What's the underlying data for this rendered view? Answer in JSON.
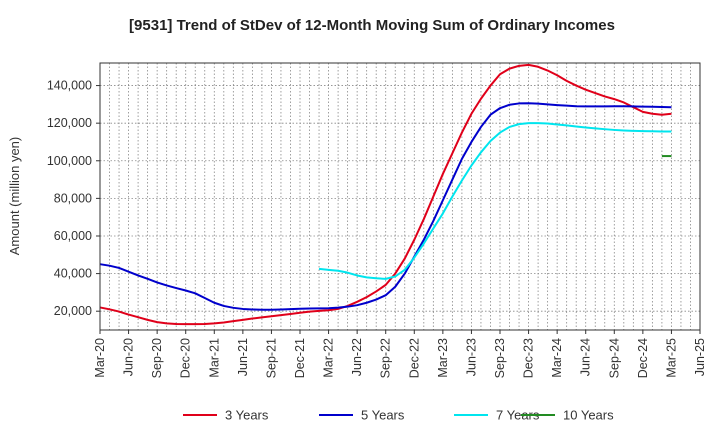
{
  "chart_data": {
    "type": "line",
    "title": "[9531]  Trend of StDev of 12-Month Moving Sum of Ordinary Incomes",
    "xlabel": "",
    "ylabel": "Amount (million yen)",
    "ylim": [
      10000,
      152000
    ],
    "yticks": [
      20000,
      40000,
      60000,
      80000,
      100000,
      120000,
      140000
    ],
    "ytick_labels": [
      "20,000",
      "40,000",
      "60,000",
      "80,000",
      "100,000",
      "120,000",
      "140,000"
    ],
    "xlim": [
      "2020-03",
      "2025-06"
    ],
    "x_tick_labels": [
      "Mar-20",
      "Jun-20",
      "Sep-20",
      "Dec-20",
      "Mar-21",
      "Jun-21",
      "Sep-21",
      "Dec-21",
      "Mar-22",
      "Jun-22",
      "Sep-22",
      "Dec-22",
      "Mar-23",
      "Jun-23",
      "Sep-23",
      "Dec-23",
      "Mar-24",
      "Jun-24",
      "Sep-24",
      "Dec-24",
      "Mar-25",
      "Jun-25"
    ],
    "grid": true,
    "legend_position": "bottom",
    "series": [
      {
        "name": "3 Years",
        "color": "#e0001a",
        "x": [
          "2020-03",
          "2020-04",
          "2020-05",
          "2020-06",
          "2020-07",
          "2020-08",
          "2020-09",
          "2020-10",
          "2020-11",
          "2020-12",
          "2021-01",
          "2021-02",
          "2021-03",
          "2021-04",
          "2021-05",
          "2021-06",
          "2021-07",
          "2021-08",
          "2021-09",
          "2021-10",
          "2021-11",
          "2021-12",
          "2022-01",
          "2022-02",
          "2022-03",
          "2022-04",
          "2022-05",
          "2022-06",
          "2022-07",
          "2022-08",
          "2022-09",
          "2022-10",
          "2022-11",
          "2022-12",
          "2023-01",
          "2023-02",
          "2023-03",
          "2023-04",
          "2023-05",
          "2023-06",
          "2023-07",
          "2023-08",
          "2023-09",
          "2023-10",
          "2023-11",
          "2023-12",
          "2024-01",
          "2024-02",
          "2024-03",
          "2024-04",
          "2024-05",
          "2024-06",
          "2024-07",
          "2024-08",
          "2024-09",
          "2024-10",
          "2024-11",
          "2024-12",
          "2025-01",
          "2025-02",
          "2025-03"
        ],
        "values": [
          22000,
          21000,
          19800,
          18200,
          16800,
          15400,
          14200,
          13500,
          13200,
          13100,
          13100,
          13200,
          13500,
          14000,
          14700,
          15400,
          16100,
          16700,
          17300,
          17900,
          18500,
          19200,
          19800,
          20200,
          20500,
          21200,
          22800,
          25000,
          27500,
          30500,
          34000,
          40000,
          48000,
          58000,
          69000,
          81000,
          93000,
          104000,
          115000,
          125000,
          133000,
          140000,
          146000,
          149000,
          150500,
          151000,
          150000,
          148000,
          145500,
          142500,
          140000,
          137800,
          136000,
          134200,
          132800,
          131000,
          128500,
          126000,
          125000,
          124500,
          125000
        ]
      },
      {
        "name": "5 Years",
        "color": "#0000cc",
        "x": [
          "2020-03",
          "2020-04",
          "2020-05",
          "2020-06",
          "2020-07",
          "2020-08",
          "2020-09",
          "2020-10",
          "2020-11",
          "2020-12",
          "2021-01",
          "2021-02",
          "2021-03",
          "2021-04",
          "2021-05",
          "2021-06",
          "2021-07",
          "2021-08",
          "2021-09",
          "2021-10",
          "2021-11",
          "2021-12",
          "2022-01",
          "2022-02",
          "2022-03",
          "2022-04",
          "2022-05",
          "2022-06",
          "2022-07",
          "2022-08",
          "2022-09",
          "2022-10",
          "2022-11",
          "2022-12",
          "2023-01",
          "2023-02",
          "2023-03",
          "2023-04",
          "2023-05",
          "2023-06",
          "2023-07",
          "2023-08",
          "2023-09",
          "2023-10",
          "2023-11",
          "2023-12",
          "2024-01",
          "2024-02",
          "2024-03",
          "2024-04",
          "2024-05",
          "2024-06",
          "2024-07",
          "2024-08",
          "2024-09",
          "2024-10",
          "2024-11",
          "2024-12",
          "2025-01",
          "2025-02",
          "2025-03"
        ],
        "values": [
          45000,
          44200,
          43000,
          41000,
          39000,
          37200,
          35300,
          33700,
          32300,
          31000,
          29500,
          27000,
          24500,
          22800,
          21800,
          21200,
          20900,
          20800,
          20800,
          20900,
          21100,
          21300,
          21400,
          21500,
          21600,
          21900,
          22400,
          23200,
          24500,
          26200,
          28500,
          33000,
          40000,
          49000,
          58000,
          68000,
          79000,
          90000,
          101000,
          110000,
          118000,
          124500,
          128000,
          129800,
          130500,
          130600,
          130400,
          130000,
          129600,
          129300,
          129000,
          128900,
          128900,
          128900,
          129000,
          129000,
          128900,
          128800,
          128700,
          128600,
          128500
        ]
      },
      {
        "name": "7 Years",
        "color": "#00e5ee",
        "x": [
          "2022-02",
          "2022-03",
          "2022-04",
          "2022-05",
          "2022-06",
          "2022-07",
          "2022-08",
          "2022-09",
          "2022-10",
          "2022-11",
          "2022-12",
          "2023-01",
          "2023-02",
          "2023-03",
          "2023-04",
          "2023-05",
          "2023-06",
          "2023-07",
          "2023-08",
          "2023-09",
          "2023-10",
          "2023-11",
          "2023-12",
          "2024-01",
          "2024-02",
          "2024-03",
          "2024-04",
          "2024-05",
          "2024-06",
          "2024-07",
          "2024-08",
          "2024-09",
          "2024-10",
          "2024-11",
          "2024-12",
          "2025-01",
          "2025-02",
          "2025-03"
        ],
        "values": [
          42500,
          42000,
          41500,
          40500,
          39000,
          38000,
          37500,
          37200,
          38500,
          42000,
          48500,
          56000,
          64000,
          72000,
          81000,
          89500,
          97500,
          104500,
          110500,
          115000,
          118000,
          119500,
          120000,
          120000,
          119800,
          119300,
          118800,
          118200,
          117700,
          117200,
          116800,
          116400,
          116100,
          115900,
          115800,
          115700,
          115600,
          115600
        ]
      },
      {
        "name": "10 Years",
        "color": "#228b22",
        "x": [
          "2025-02",
          "2025-03"
        ],
        "values": [
          102500,
          102500
        ]
      }
    ]
  }
}
